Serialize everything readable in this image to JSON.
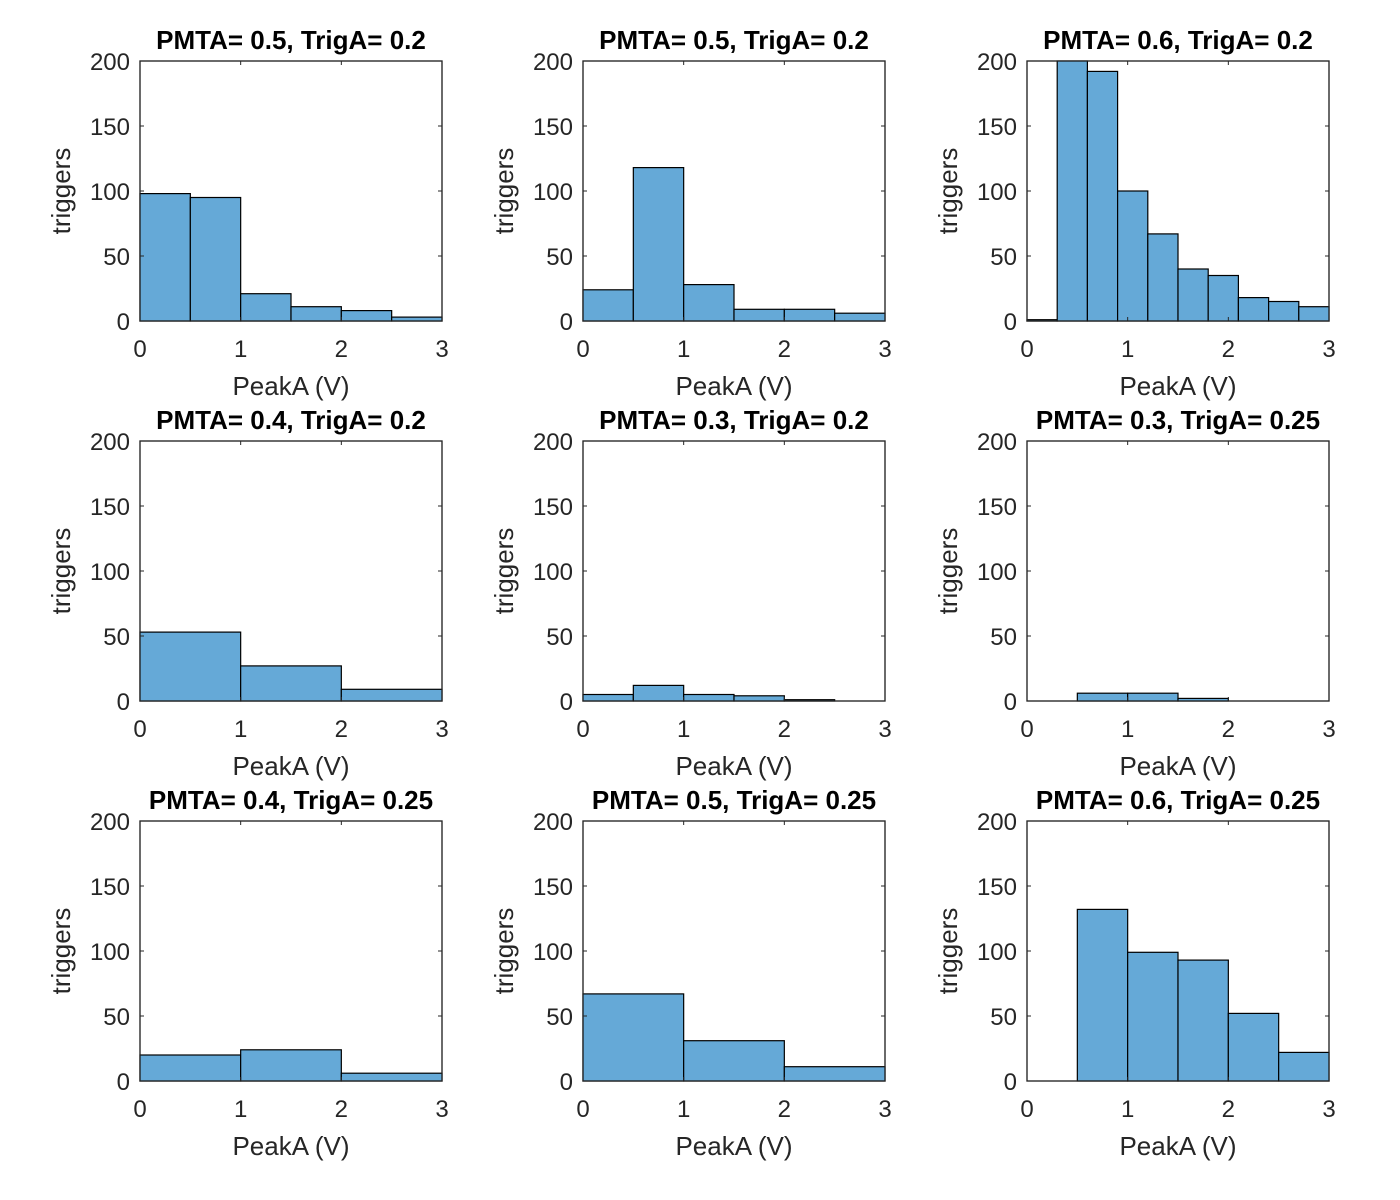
{
  "chart_data": [
    {
      "type": "bar",
      "title": "PMTA= 0.5, TrigA= 0.2",
      "xlabel": "PeakA (V)",
      "ylabel": "triggers",
      "xlim": [
        0,
        3
      ],
      "ylim": [
        0,
        200
      ],
      "xticks": [
        0,
        1,
        2,
        3
      ],
      "yticks": [
        0,
        50,
        100,
        150,
        200
      ],
      "bin_edges": [
        0,
        0.5,
        1,
        1.5,
        2,
        2.5,
        3
      ],
      "values": [
        98,
        95,
        21,
        11,
        8,
        3
      ]
    },
    {
      "type": "bar",
      "title": "PMTA= 0.5, TrigA= 0.2",
      "xlabel": "PeakA (V)",
      "ylabel": "triggers",
      "xlim": [
        0,
        3
      ],
      "ylim": [
        0,
        200
      ],
      "xticks": [
        0,
        1,
        2,
        3
      ],
      "yticks": [
        0,
        50,
        100,
        150,
        200
      ],
      "bin_edges": [
        0,
        0.5,
        1,
        1.5,
        2,
        2.5,
        3
      ],
      "values": [
        24,
        118,
        28,
        9,
        9,
        6
      ]
    },
    {
      "type": "bar",
      "title": "PMTA= 0.6, TrigA= 0.2",
      "xlabel": "PeakA (V)",
      "ylabel": "triggers",
      "xlim": [
        0,
        3
      ],
      "ylim": [
        0,
        200
      ],
      "xticks": [
        0,
        1,
        2,
        3
      ],
      "yticks": [
        0,
        50,
        100,
        150,
        200
      ],
      "bin_edges": [
        0,
        0.3,
        0.6,
        0.9,
        1.2,
        1.5,
        1.8,
        2.1,
        2.4,
        2.7,
        3.0
      ],
      "values": [
        1,
        200,
        192,
        100,
        67,
        40,
        35,
        18,
        15,
        11
      ]
    },
    {
      "type": "bar",
      "title": "PMTA= 0.4, TrigA= 0.2",
      "xlabel": "PeakA (V)",
      "ylabel": "triggers",
      "xlim": [
        0,
        3
      ],
      "ylim": [
        0,
        200
      ],
      "xticks": [
        0,
        1,
        2,
        3
      ],
      "yticks": [
        0,
        50,
        100,
        150,
        200
      ],
      "bin_edges": [
        0,
        1,
        2,
        3
      ],
      "values": [
        53,
        27,
        9
      ]
    },
    {
      "type": "bar",
      "title": "PMTA= 0.3, TrigA= 0.2",
      "xlabel": "PeakA (V)",
      "ylabel": "triggers",
      "xlim": [
        0,
        3
      ],
      "ylim": [
        0,
        200
      ],
      "xticks": [
        0,
        1,
        2,
        3
      ],
      "yticks": [
        0,
        50,
        100,
        150,
        200
      ],
      "bin_edges": [
        0,
        0.5,
        1,
        1.5,
        2,
        2.5
      ],
      "values": [
        5,
        12,
        5,
        4,
        1
      ]
    },
    {
      "type": "bar",
      "title": "PMTA= 0.3, TrigA= 0.25",
      "xlabel": "PeakA (V)",
      "ylabel": "triggers",
      "xlim": [
        0,
        3
      ],
      "ylim": [
        0,
        200
      ],
      "xticks": [
        0,
        1,
        2,
        3
      ],
      "yticks": [
        0,
        50,
        100,
        150,
        200
      ],
      "bin_edges": [
        0.5,
        1,
        1.5,
        2
      ],
      "values": [
        6,
        6,
        2
      ]
    },
    {
      "type": "bar",
      "title": "PMTA= 0.4, TrigA= 0.25",
      "xlabel": "PeakA (V)",
      "ylabel": "triggers",
      "xlim": [
        0,
        3
      ],
      "ylim": [
        0,
        200
      ],
      "xticks": [
        0,
        1,
        2,
        3
      ],
      "yticks": [
        0,
        50,
        100,
        150,
        200
      ],
      "bin_edges": [
        0,
        1,
        2,
        3
      ],
      "values": [
        20,
        24,
        6
      ]
    },
    {
      "type": "bar",
      "title": "PMTA= 0.5, TrigA= 0.25",
      "xlabel": "PeakA (V)",
      "ylabel": "triggers",
      "xlim": [
        0,
        3
      ],
      "ylim": [
        0,
        200
      ],
      "xticks": [
        0,
        1,
        2,
        3
      ],
      "yticks": [
        0,
        50,
        100,
        150,
        200
      ],
      "bin_edges": [
        0,
        1,
        2,
        3
      ],
      "values": [
        67,
        31,
        11
      ]
    },
    {
      "type": "bar",
      "title": "PMTA= 0.6, TrigA= 0.25",
      "xlabel": "PeakA (V)",
      "ylabel": "triggers",
      "xlim": [
        0,
        3
      ],
      "ylim": [
        0,
        200
      ],
      "xticks": [
        0,
        1,
        2,
        3
      ],
      "yticks": [
        0,
        50,
        100,
        150,
        200
      ],
      "bin_edges": [
        0.5,
        1,
        1.5,
        2,
        2.5,
        3
      ],
      "values": [
        132,
        99,
        93,
        52,
        22
      ]
    }
  ],
  "colors": {
    "bar_fill": "#65a9d7",
    "bar_edge": "#000000",
    "axes": "#262626"
  }
}
